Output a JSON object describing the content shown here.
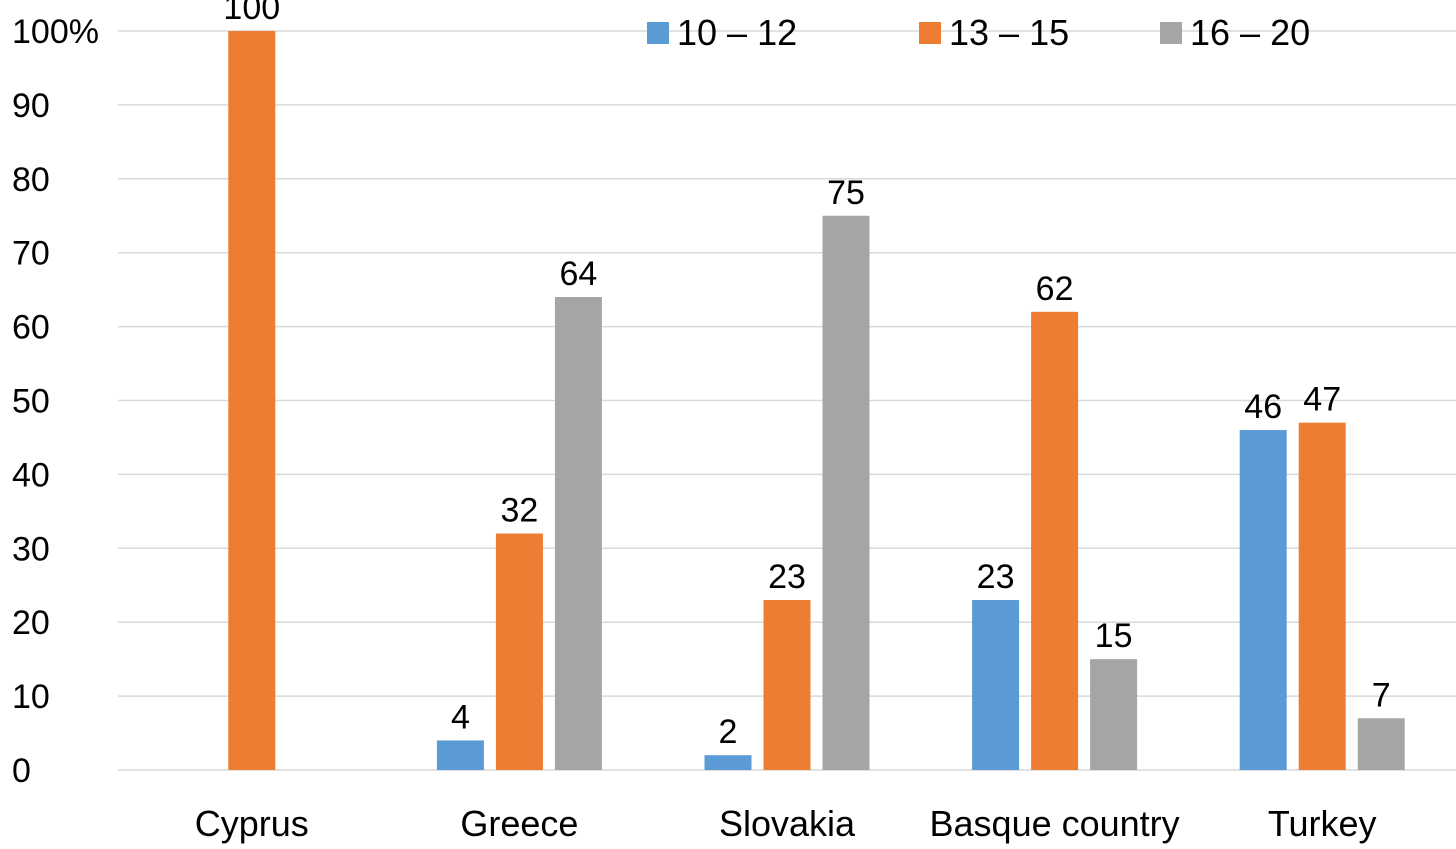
{
  "chart_data": {
    "type": "bar",
    "title": "",
    "xlabel": "",
    "ylabel": "",
    "ylim": [
      0,
      100
    ],
    "yticks": [
      0,
      10,
      20,
      30,
      40,
      50,
      60,
      70,
      80,
      90,
      100
    ],
    "ytick_labels": [
      "0",
      "10",
      "20",
      "30",
      "40",
      "50",
      "60",
      "70",
      "80",
      "90",
      "100%"
    ],
    "grid": true,
    "legend_position": "top-right",
    "categories": [
      "Cyprus",
      "Greece",
      "Slovakia",
      "Basque country",
      "Turkey"
    ],
    "series": [
      {
        "name": "10 – 12",
        "color": "#5b9bd5",
        "values": [
          0,
          4,
          2,
          23,
          46
        ],
        "labels": [
          "",
          "4",
          "2",
          "23",
          "46"
        ]
      },
      {
        "name": "13 – 15",
        "color": "#ed7d31",
        "values": [
          100,
          32,
          23,
          62,
          47
        ],
        "labels": [
          "100",
          "32",
          "23",
          "62",
          "47"
        ]
      },
      {
        "name": "16 – 20",
        "color": "#a5a5a5",
        "values": [
          0,
          64,
          75,
          15,
          7
        ],
        "labels": [
          "",
          "64",
          "75",
          "15",
          "7"
        ]
      }
    ]
  }
}
